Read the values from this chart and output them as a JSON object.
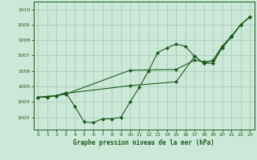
{
  "title": "Graphe pression niveau de la mer (hPa)",
  "background_color": "#cce8d8",
  "grid_color": "#aaccbb",
  "line_color": "#1a5c1a",
  "text_color": "#1a5c1a",
  "xlim": [
    -0.5,
    23.5
  ],
  "ylim": [
    1002.2,
    1010.5
  ],
  "yticks": [
    1003,
    1004,
    1005,
    1006,
    1007,
    1008,
    1009,
    1010
  ],
  "xticks": [
    0,
    1,
    2,
    3,
    4,
    5,
    6,
    7,
    8,
    9,
    10,
    11,
    12,
    13,
    14,
    15,
    16,
    17,
    18,
    19,
    20,
    21,
    22,
    23
  ],
  "series1": [
    [
      0,
      1004.3
    ],
    [
      1,
      1004.3
    ],
    [
      2,
      1004.4
    ],
    [
      3,
      1004.6
    ],
    [
      4,
      1003.7
    ],
    [
      5,
      1002.7
    ],
    [
      6,
      1002.65
    ],
    [
      7,
      1002.9
    ],
    [
      8,
      1002.9
    ],
    [
      9,
      1003.0
    ],
    [
      10,
      1004.0
    ],
    [
      11,
      1004.95
    ],
    [
      12,
      1006.0
    ],
    [
      13,
      1007.2
    ],
    [
      14,
      1007.5
    ],
    [
      15,
      1007.75
    ],
    [
      16,
      1007.6
    ],
    [
      17,
      1006.95
    ],
    [
      18,
      1006.5
    ],
    [
      19,
      1006.5
    ],
    [
      20,
      1007.5
    ],
    [
      21,
      1008.2
    ],
    [
      22,
      1009.0
    ],
    [
      23,
      1009.5
    ]
  ],
  "series2": [
    [
      0,
      1004.3
    ],
    [
      1,
      1004.35
    ],
    [
      2,
      1004.4
    ],
    [
      3,
      1004.5
    ],
    [
      10,
      1006.05
    ],
    [
      15,
      1006.1
    ],
    [
      17,
      1006.7
    ],
    [
      18,
      1006.6
    ],
    [
      19,
      1006.65
    ],
    [
      20,
      1007.6
    ],
    [
      21,
      1008.25
    ],
    [
      22,
      1009.0
    ],
    [
      23,
      1009.5
    ]
  ],
  "series3": [
    [
      0,
      1004.3
    ],
    [
      1,
      1004.35
    ],
    [
      2,
      1004.4
    ],
    [
      3,
      1004.55
    ],
    [
      10,
      1005.05
    ],
    [
      15,
      1005.3
    ],
    [
      17,
      1006.95
    ],
    [
      18,
      1006.5
    ],
    [
      19,
      1006.7
    ],
    [
      20,
      1007.6
    ],
    [
      21,
      1008.25
    ],
    [
      22,
      1009.0
    ],
    [
      23,
      1009.5
    ]
  ]
}
